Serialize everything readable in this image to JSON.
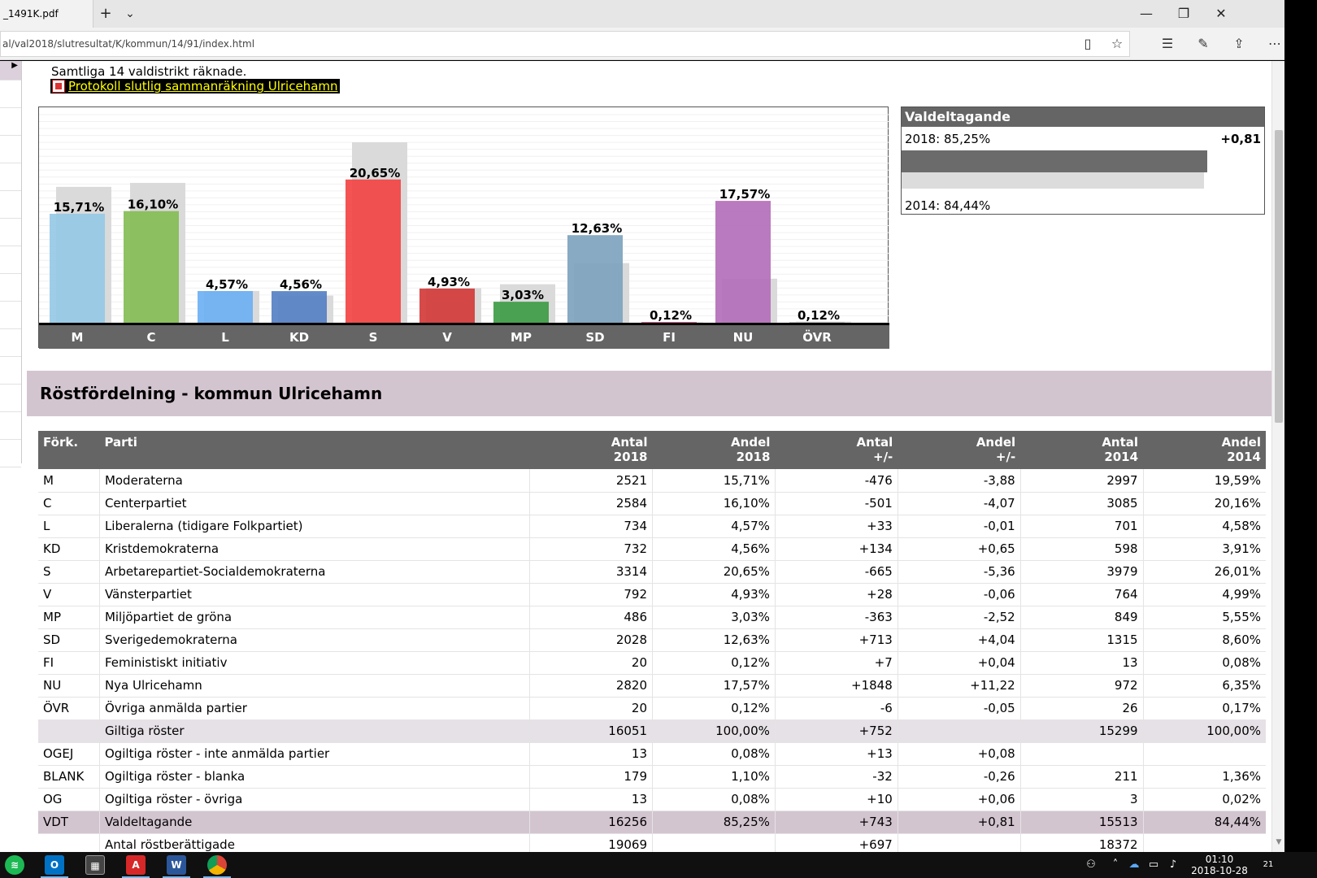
{
  "browser": {
    "tab_title": "_1491K.pdf",
    "new_tab": "+",
    "tab_menu": "⌄",
    "url": "al/val2018/slutresultat/K/kommun/14/91/index.html",
    "win_min": "—",
    "win_max": "❐",
    "win_close": "✕"
  },
  "page": {
    "counted_text": "Samtliga 14 valdistrikt räknade.",
    "protocol_link": "Protokoll slutlig sammanräkning Ulricehamn",
    "section_title": "Röstfördelning - kommun Ulricehamn"
  },
  "turnout": {
    "title": "Valdeltagande",
    "label_2018": "2018: 85,25%",
    "label_2014": "2014: 84,44%",
    "diff": "+0,81",
    "value_2018": 85.25,
    "value_2014": 84.44
  },
  "chart_data": {
    "type": "bar",
    "categories": [
      "M",
      "C",
      "L",
      "KD",
      "S",
      "V",
      "MP",
      "SD",
      "FI",
      "NU",
      "ÖVR"
    ],
    "series": [
      {
        "values": [
          15.71,
          16.1,
          4.57,
          4.56,
          20.65,
          4.93,
          3.03,
          12.63,
          0.12,
          17.57,
          0.12
        ]
      },
      {
        "values": [
          19.59,
          20.16,
          4.58,
          3.91,
          26.01,
          4.99,
          5.55,
          8.6,
          0.08,
          6.35,
          0.17
        ]
      }
    ],
    "labels": [
      "15,71%",
      "16,10%",
      "4,57%",
      "4,56%",
      "20,65%",
      "4,93%",
      "3,03%",
      "12,63%",
      "0,12%",
      "17,57%",
      "0,12%"
    ],
    "colors": [
      "#96c9e6",
      "#86bd55",
      "#6cb0f3",
      "#5680c4",
      "#f24444",
      "#d23b3b",
      "#3e9c45",
      "#7ea3be",
      "#d9568f",
      "#b46fba",
      "#bdbdbd"
    ],
    "ghost_color": "#dadada",
    "ylim": [
      0,
      30
    ],
    "grid": true
  },
  "table": {
    "headers": [
      [
        "Förk.",
        ""
      ],
      [
        "Parti",
        ""
      ],
      [
        "Antal",
        "2018"
      ],
      [
        "Andel",
        "2018"
      ],
      [
        "Antal",
        "+/-"
      ],
      [
        "Andel",
        "+/-"
      ],
      [
        "Antal",
        "2014"
      ],
      [
        "Andel",
        "2014"
      ]
    ],
    "rows": [
      [
        "M",
        "Moderaterna",
        "2521",
        "15,71%",
        "-476",
        "-3,88",
        "2997",
        "19,59%"
      ],
      [
        "C",
        "Centerpartiet",
        "2584",
        "16,10%",
        "-501",
        "-4,07",
        "3085",
        "20,16%"
      ],
      [
        "L",
        "Liberalerna (tidigare Folkpartiet)",
        "734",
        "4,57%",
        "+33",
        "-0,01",
        "701",
        "4,58%"
      ],
      [
        "KD",
        "Kristdemokraterna",
        "732",
        "4,56%",
        "+134",
        "+0,65",
        "598",
        "3,91%"
      ],
      [
        "S",
        "Arbetarepartiet-Socialdemokraterna",
        "3314",
        "20,65%",
        "-665",
        "-5,36",
        "3979",
        "26,01%"
      ],
      [
        "V",
        "Vänsterpartiet",
        "792",
        "4,93%",
        "+28",
        "-0,06",
        "764",
        "4,99%"
      ],
      [
        "MP",
        "Miljöpartiet de gröna",
        "486",
        "3,03%",
        "-363",
        "-2,52",
        "849",
        "5,55%"
      ],
      [
        "SD",
        "Sverigedemokraterna",
        "2028",
        "12,63%",
        "+713",
        "+4,04",
        "1315",
        "8,60%"
      ],
      [
        "FI",
        "Feministiskt initiativ",
        "20",
        "0,12%",
        "+7",
        "+0,04",
        "13",
        "0,08%"
      ],
      [
        "NU",
        "Nya Ulricehamn",
        "2820",
        "17,57%",
        "+1848",
        "+11,22",
        "972",
        "6,35%"
      ],
      [
        "ÖVR",
        "Övriga anmälda partier",
        "20",
        "0,12%",
        "-6",
        "-0,05",
        "26",
        "0,17%"
      ],
      [
        "",
        "Giltiga röster",
        "16051",
        "100,00%",
        "+752",
        "",
        "15299",
        "100,00%"
      ],
      [
        "OGEJ",
        "Ogiltiga röster - inte anmälda partier",
        "13",
        "0,08%",
        "+13",
        "+0,08",
        "",
        ""
      ],
      [
        "BLANK",
        "Ogiltiga röster - blanka",
        "179",
        "1,10%",
        "-32",
        "-0,26",
        "211",
        "1,36%"
      ],
      [
        "OG",
        "Ogiltiga röster - övriga",
        "13",
        "0,08%",
        "+10",
        "+0,06",
        "3",
        "0,02%"
      ],
      [
        "VDT",
        "Valdeltagande",
        "16256",
        "85,25%",
        "+743",
        "+0,81",
        "15513",
        "84,44%"
      ],
      [
        "",
        "Antal röstberättigade",
        "19069",
        "",
        "+697",
        "",
        "18372",
        ""
      ]
    ],
    "row_styles": [
      "",
      "",
      "",
      "",
      "",
      "",
      "",
      "",
      "",
      "",
      "",
      "total",
      "",
      "",
      "",
      "vdt",
      ""
    ]
  },
  "taskbar": {
    "apps": [
      "spotify-icon",
      "outlook-icon",
      "calculator-icon",
      "acrobat-icon",
      "word-icon",
      "chrome-icon"
    ],
    "outlook_letter": "O",
    "word_letter": "W",
    "time": "01:10",
    "date": "2018-10-28",
    "notifications": "21"
  }
}
